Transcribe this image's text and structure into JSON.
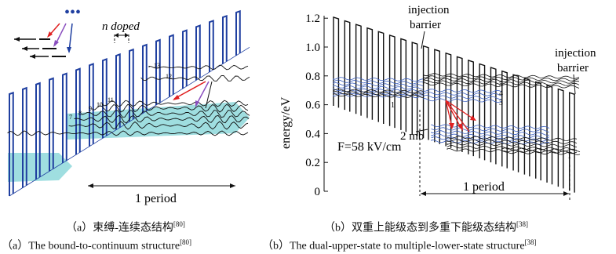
{
  "left_panel": {
    "label_n_doped": "n doped",
    "label_period": "1 period",
    "state_numbers": [
      "7",
      "8",
      "9",
      "10",
      "11",
      "12",
      "13"
    ],
    "dots": "•••"
  },
  "right_panel": {
    "y_axis_label": "energy/eV",
    "y_ticks": [
      "0",
      "0.2",
      "0.4",
      "0.6",
      "0.8",
      "1.0",
      "1.2"
    ],
    "injection_barrier_left_1": "injection",
    "injection_barrier_left_2": "barrier",
    "injection_barrier_right_1": "injection",
    "injection_barrier_right_2": "barrier",
    "field_label": "F=58 kV/cm",
    "label_2mb": "2 mb",
    "label_period": "1 period",
    "level_numbers": [
      "1",
      "5",
      "4",
      "3",
      "1"
    ]
  },
  "captions": {
    "left_cn": "（a）束缚-连续态结构",
    "left_cn_ref": "[80]",
    "right_cn": "（b）双重上能级态到多重下能级态结构",
    "right_cn_ref": "[38]",
    "left_en": "（a）The bound-to-continuum structure",
    "left_en_ref": "[80]",
    "right_en": "（b）The dual-upper-state to multiple-lower-state structure",
    "right_en_ref": "[38]"
  },
  "colors": {
    "barrier_blue": "#1f3fa0",
    "band_cyan": "#7fd3d6",
    "arrow_red": "#e02020",
    "arrow_purple": "#8a4fbf",
    "state_blue": "#3a5fc0",
    "line_black": "#111111"
  }
}
